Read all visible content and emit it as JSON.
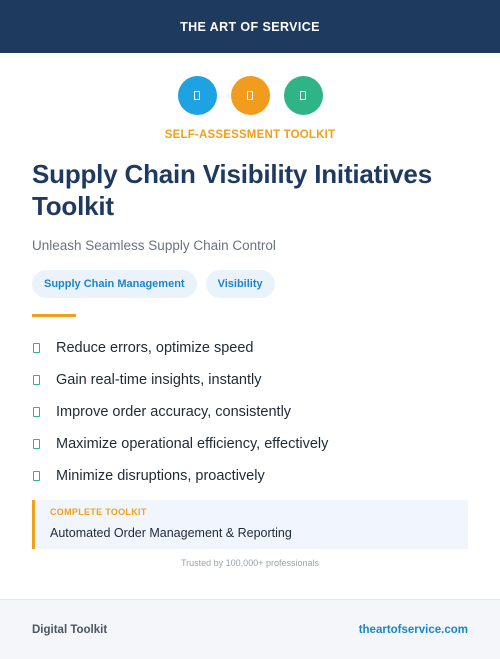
{
  "header": {
    "title": "THE ART OF SERVICE"
  },
  "icons": [
    {
      "name": "blue-badge-icon",
      "color": "#1ea2e2"
    },
    {
      "name": "orange-badge-icon",
      "color": "#f29c1f"
    },
    {
      "name": "green-badge-icon",
      "color": "#2fb487"
    }
  ],
  "kicker": "SELF-ASSESSMENT TOOLKIT",
  "title": "Supply Chain Visibility Initiatives Toolkit",
  "subtitle": "Unleash Seamless Supply Chain Control",
  "tags": [
    "Supply Chain Management",
    "Visibility"
  ],
  "features": [
    "Reduce errors, optimize speed",
    "Gain real-time insights, instantly",
    "Improve order accuracy, consistently",
    "Maximize operational efficiency, effectively",
    "Minimize disruptions, proactively"
  ],
  "callout": {
    "label": "COMPLETE TOOLKIT",
    "text": "Automated Order Management & Reporting"
  },
  "trusted": "Trusted by 100,000+ professionals",
  "footer": {
    "left": "Digital Toolkit",
    "right": "theartofservice.com"
  }
}
